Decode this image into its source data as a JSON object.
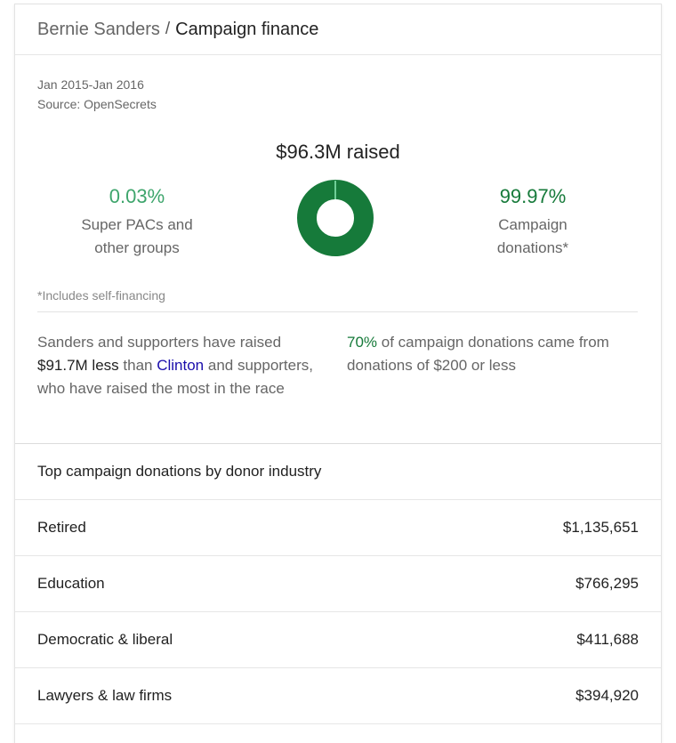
{
  "header": {
    "name": "Bernie Sanders",
    "separator": "/",
    "title": "Campaign finance"
  },
  "summary": {
    "date_range": "Jan 2015-Jan 2016",
    "source": "Source: OpenSecrets",
    "raised": "$96.3M raised",
    "left_stat": {
      "pct": "0.03%",
      "line1": "Super PACs and",
      "line2": "other groups"
    },
    "right_stat": {
      "pct": "99.97%",
      "line1": "Campaign",
      "line2": "donations*"
    },
    "donut": {
      "super_pac_fraction": 0.0003,
      "campaign_fraction": 0.9997,
      "colors": {
        "campaign": "#167a3a",
        "super_pac": "#6fcf97"
      }
    },
    "footnote": "*Includes self-financing",
    "fact_left": {
      "part1": "Sanders and supporters have raised ",
      "amount": "$91.7M less",
      "part2": " than ",
      "link": "Clinton",
      "part3": " and supporters, who have raised the most in the race"
    },
    "fact_right": {
      "pct": "70%",
      "text": " of campaign donations came from donations of $200 or less"
    }
  },
  "industries": {
    "title": "Top campaign donations by donor industry",
    "rows": [
      {
        "label": "Retired",
        "value": "$1,135,651"
      },
      {
        "label": "Education",
        "value": "$766,295"
      },
      {
        "label": "Democratic & liberal",
        "value": "$411,688"
      },
      {
        "label": "Lawyers & law firms",
        "value": "$394,920"
      }
    ]
  }
}
